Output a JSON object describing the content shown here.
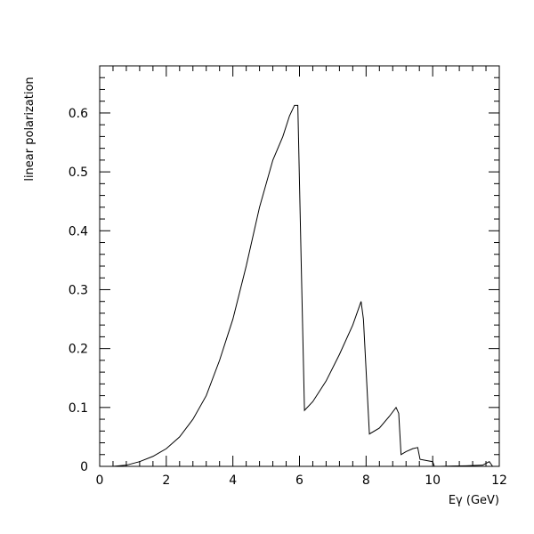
{
  "chart_data": {
    "type": "line",
    "xlabel": "Eγ (GeV)",
    "ylabel": "linear polarization",
    "xlim": [
      0,
      12
    ],
    "ylim": [
      0,
      0.68
    ],
    "grid": false,
    "x_ticks": [
      0,
      2,
      4,
      6,
      8,
      10,
      12
    ],
    "y_ticks": [
      0,
      0.1,
      0.2,
      0.3,
      0.4,
      0.5,
      0.6
    ],
    "x_tick_labels": [
      "0",
      "2",
      "4",
      "6",
      "8",
      "10",
      "12"
    ],
    "y_tick_labels": [
      "0",
      "0.1",
      "0.2",
      "0.3",
      "0.4",
      "0.5",
      "0.6"
    ],
    "series": [
      {
        "x": [
          0.4,
          0.8,
          1.2,
          1.6,
          2.0,
          2.4,
          2.8,
          3.2,
          3.6,
          4.0,
          4.4,
          4.8,
          5.2,
          5.5,
          5.7,
          5.85,
          5.95,
          6.05,
          6.15,
          6.4,
          6.8,
          7.2,
          7.6,
          7.85,
          7.92,
          8.1,
          8.4,
          8.7,
          8.9,
          8.98,
          9.05,
          9.2,
          9.4,
          9.55,
          9.62,
          9.8,
          10.0,
          10.05,
          10.2,
          11.0,
          11.5,
          11.7,
          11.8
        ],
        "y": [
          0.0,
          0.002,
          0.008,
          0.017,
          0.03,
          0.05,
          0.08,
          0.12,
          0.18,
          0.25,
          0.34,
          0.44,
          0.52,
          0.56,
          0.595,
          0.613,
          0.613,
          0.35,
          0.095,
          0.11,
          0.145,
          0.19,
          0.24,
          0.28,
          0.25,
          0.055,
          0.065,
          0.085,
          0.1,
          0.09,
          0.02,
          0.025,
          0.03,
          0.032,
          0.012,
          0.01,
          0.008,
          0.0,
          0.0,
          0.001,
          0.002,
          0.008,
          0.0
        ]
      }
    ]
  }
}
